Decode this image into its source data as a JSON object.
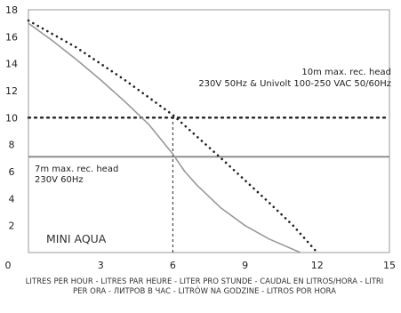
{
  "chart_data": {
    "type": "line",
    "title": "",
    "xlabel": "LITRES PER HOUR - LITRES PAR HEURE - LITER PRO STUNDE - CAUDAL EN LITROS/HORA - LITRI PER ORA - ЛИТРОВ В ЧАС - LITRÓW NA GODZINE - LITROS POR HORA",
    "ylabel": "",
    "xlim": [
      0,
      15
    ],
    "ylim": [
      0,
      18
    ],
    "x_ticks": [
      "0",
      "3",
      "6",
      "9",
      "12",
      "15"
    ],
    "y_ticks": [
      "2",
      "4",
      "6",
      "8",
      "10",
      "12",
      "14",
      "16",
      "18"
    ],
    "grid": false,
    "series": [
      {
        "style": "solid",
        "color": "#999999",
        "points": [
          [
            0,
            17.0
          ],
          [
            1,
            15.7
          ],
          [
            2,
            14.3
          ],
          [
            3,
            12.8
          ],
          [
            4,
            11.2
          ],
          [
            5,
            9.5
          ],
          [
            6,
            7.3
          ],
          [
            6.5,
            6.0
          ],
          [
            7,
            5.0
          ],
          [
            8,
            3.3
          ],
          [
            9,
            2.0
          ],
          [
            10,
            1.0
          ],
          [
            11.3,
            0
          ]
        ]
      },
      {
        "style": "dotted",
        "color": "#222222",
        "points": [
          [
            0,
            17.2
          ],
          [
            2,
            15.2
          ],
          [
            4,
            12.8
          ],
          [
            6,
            10.2
          ],
          [
            8,
            7.0
          ],
          [
            10,
            3.7
          ],
          [
            11,
            2.0
          ],
          [
            12,
            0
          ]
        ]
      }
    ],
    "reference_lines": [
      {
        "axis": "y",
        "value": 10,
        "style": "dotted",
        "color": "#222222"
      },
      {
        "axis": "y",
        "value": 7.1,
        "style": "solid",
        "color": "#888888"
      },
      {
        "axis": "x",
        "value": 6,
        "style": "dashed",
        "color": "#222222",
        "y_to": 10
      }
    ],
    "annotations": [
      {
        "id": "ten",
        "lines": [
          "10m max. rec. head",
          "230V 50Hz & Univolt 100-250 VAC 50/60Hz"
        ]
      },
      {
        "id": "seven",
        "lines": [
          "7m max. rec. head",
          "230V 60Hz"
        ]
      },
      {
        "id": "brand",
        "lines": [
          "MINI AQUA"
        ]
      }
    ]
  }
}
